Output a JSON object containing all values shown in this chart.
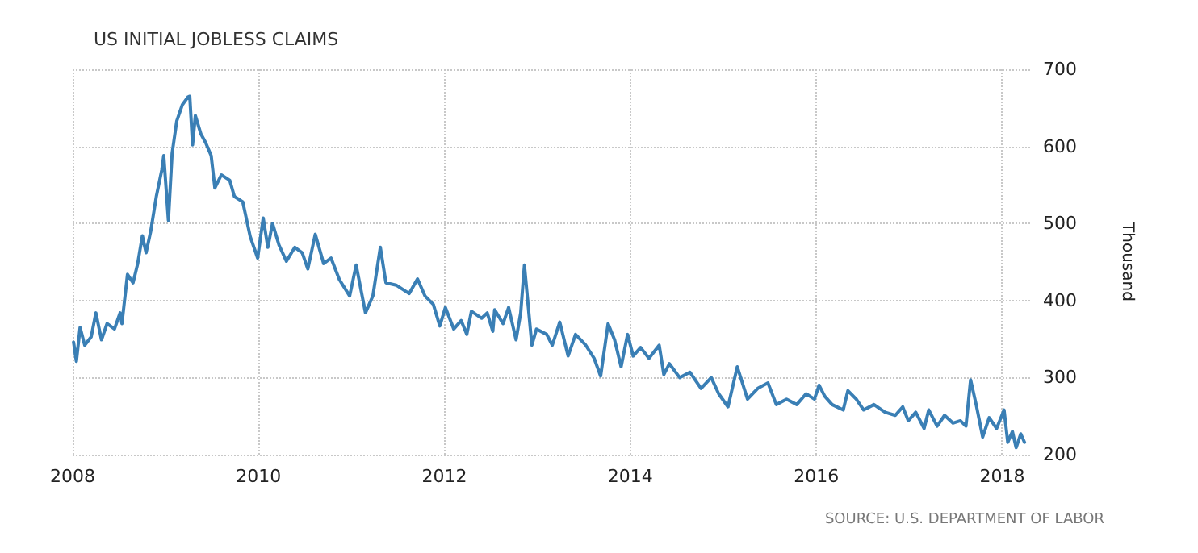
{
  "chart_data": {
    "type": "line",
    "title": "US INITIAL JOBLESS CLAIMS",
    "ylabel": "Thousand",
    "annotations": [
      "SOURCE: U.S. DEPARTMENT OF LABOR"
    ],
    "x": [
      2008.01,
      2008.04,
      2008.08,
      2008.13,
      2008.2,
      2008.25,
      2008.31,
      2008.37,
      2008.45,
      2008.51,
      2008.53,
      2008.59,
      2008.65,
      2008.7,
      2008.75,
      2008.79,
      2008.84,
      2008.9,
      2008.96,
      2008.98,
      2009.03,
      2009.07,
      2009.12,
      2009.18,
      2009.24,
      2009.26,
      2009.29,
      2009.32,
      2009.38,
      2009.43,
      2009.49,
      2009.53,
      2009.6,
      2009.69,
      2009.74,
      2009.83,
      2009.91,
      2009.99,
      2010.05,
      2010.1,
      2010.15,
      2010.22,
      2010.3,
      2010.39,
      2010.47,
      2010.53,
      2010.61,
      2010.7,
      2010.78,
      2010.87,
      2010.98,
      2011.05,
      2011.15,
      2011.23,
      2011.31,
      2011.37,
      2011.48,
      2011.62,
      2011.71,
      2011.79,
      2011.88,
      2011.95,
      2012.01,
      2012.1,
      2012.18,
      2012.24,
      2012.29,
      2012.4,
      2012.46,
      2012.52,
      2012.54,
      2012.63,
      2012.69,
      2012.77,
      2012.82,
      2012.86,
      2012.94,
      2012.99,
      2013.1,
      2013.16,
      2013.24,
      2013.33,
      2013.41,
      2013.52,
      2013.61,
      2013.68,
      2013.76,
      2013.83,
      2013.9,
      2013.97,
      2014.03,
      2014.11,
      2014.2,
      2014.31,
      2014.36,
      2014.42,
      2014.53,
      2014.64,
      2014.76,
      2014.87,
      2014.95,
      2015.05,
      2015.15,
      2015.26,
      2015.37,
      2015.48,
      2015.57,
      2015.68,
      2015.79,
      2015.89,
      2015.98,
      2016.03,
      2016.09,
      2016.17,
      2016.29,
      2016.34,
      2016.43,
      2016.51,
      2016.62,
      2016.74,
      2016.85,
      2016.93,
      2016.99,
      2017.07,
      2017.16,
      2017.21,
      2017.3,
      2017.38,
      2017.47,
      2017.55,
      2017.61,
      2017.66,
      2017.72,
      2017.79,
      2017.86,
      2017.94,
      2018.02,
      2018.06,
      2018.11,
      2018.15,
      2018.2,
      2018.24
    ],
    "series": [
      {
        "color": "#3a7fb5",
        "values": [
          346,
          321,
          365,
          342,
          353,
          384,
          349,
          370,
          363,
          384,
          370,
          434,
          423,
          448,
          484,
          462,
          490,
          535,
          570,
          588,
          504,
          591,
          633,
          654,
          664,
          665,
          602,
          640,
          616,
          605,
          588,
          546,
          563,
          556,
          535,
          528,
          483,
          455,
          507,
          469,
          500,
          472,
          451,
          469,
          462,
          441,
          486,
          448,
          455,
          427,
          406,
          446,
          384,
          406,
          469,
          423,
          420,
          409,
          428,
          406,
          395,
          367,
          391,
          363,
          374,
          356,
          386,
          377,
          384,
          360,
          388,
          370,
          391,
          349,
          384,
          446,
          342,
          363,
          356,
          342,
          372,
          328,
          356,
          342,
          325,
          302,
          370,
          349,
          314,
          356,
          328,
          339,
          325,
          342,
          304,
          318,
          300,
          307,
          286,
          300,
          279,
          262,
          314,
          272,
          286,
          293,
          265,
          272,
          265,
          279,
          272,
          290,
          276,
          265,
          258,
          283,
          272,
          258,
          265,
          255,
          251,
          262,
          244,
          255,
          234,
          258,
          237,
          251,
          241,
          244,
          237,
          297,
          265,
          223,
          248,
          234,
          258,
          216,
          230,
          209,
          227,
          216
        ]
      }
    ],
    "xlim": [
      2008,
      2018.3
    ],
    "xticks": [
      2008,
      2010,
      2012,
      2014,
      2016,
      2018
    ],
    "ylim": [
      200,
      700
    ],
    "yticks": [
      200,
      300,
      400,
      500,
      600,
      700
    ],
    "grid": true,
    "marker": "none",
    "line_style": "solid"
  }
}
